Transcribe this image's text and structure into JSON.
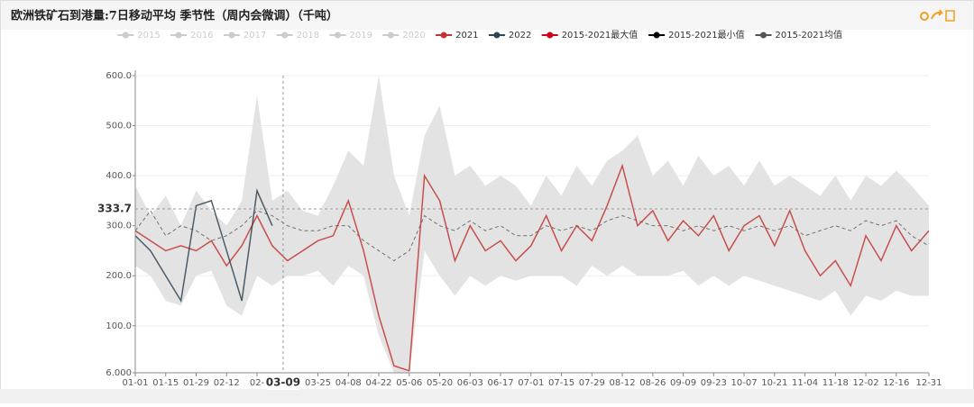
{
  "chart_data": {
    "type": "line",
    "title": "欧洲铁矿石到港量:7日移动平均 季节性（周内会微调）（千吨）",
    "categories": [
      "01-01",
      null,
      "01-15",
      null,
      "01-29",
      null,
      "02-12",
      null,
      "02-",
      null,
      null,
      null,
      "03-25",
      null,
      "04-08",
      null,
      "04-22",
      null,
      "05-06",
      null,
      "05-20",
      null,
      "06-03",
      null,
      "06-17",
      null,
      "07-01",
      null,
      "07-15",
      null,
      "07-29",
      null,
      "08-12",
      null,
      "08-26",
      null,
      "09-09",
      null,
      "09-23",
      null,
      "10-07",
      null,
      "10-21",
      null,
      "11-04",
      null,
      "11-18",
      null,
      "12-02",
      null,
      "12-16",
      null,
      "12-31"
    ],
    "ylim": [
      6,
      600
    ],
    "yticks": [
      {
        "value": 6,
        "label": "6.000"
      },
      {
        "value": 100,
        "label": "100.0"
      },
      {
        "value": 200,
        "label": "200.0"
      },
      {
        "value": 300,
        "label": "300.0"
      },
      {
        "value": 400,
        "label": "400.0"
      },
      {
        "value": 500,
        "label": "500.0"
      },
      {
        "value": 600,
        "label": "600.0"
      }
    ],
    "grid": true,
    "pointer": {
      "x": "03-09",
      "y": 333.7
    },
    "series": [
      {
        "name": "2015",
        "color": "#cccccc",
        "hidden": true
      },
      {
        "name": "2016",
        "color": "#cccccc",
        "hidden": true
      },
      {
        "name": "2017",
        "color": "#cccccc",
        "hidden": true
      },
      {
        "name": "2018",
        "color": "#cccccc",
        "hidden": true
      },
      {
        "name": "2019",
        "color": "#cccccc",
        "hidden": true
      },
      {
        "name": "2020",
        "color": "#cccccc",
        "hidden": true
      },
      {
        "name": "2021",
        "color": "#c23531",
        "role": "line",
        "values": [
          290,
          270,
          250,
          260,
          250,
          270,
          220,
          260,
          320,
          260,
          230,
          250,
          270,
          280,
          350,
          250,
          120,
          20,
          10,
          400,
          350,
          230,
          300,
          250,
          270,
          230,
          260,
          320,
          250,
          300,
          270,
          340,
          420,
          300,
          330,
          270,
          310,
          280,
          320,
          250,
          300,
          320,
          260,
          330,
          250,
          200,
          230,
          180,
          280,
          230,
          300,
          250,
          290
        ]
      },
      {
        "name": "2022",
        "color": "#2f4554",
        "role": "line",
        "values": [
          280,
          250,
          200,
          150,
          340,
          350,
          250,
          150,
          370,
          300,
          null,
          null,
          null,
          null,
          null,
          null,
          null,
          null,
          null,
          null,
          null,
          null,
          null,
          null,
          null,
          null,
          null,
          null,
          null,
          null,
          null,
          null,
          null,
          null,
          null,
          null,
          null,
          null,
          null,
          null,
          null,
          null,
          null,
          null,
          null,
          null,
          null,
          null,
          null,
          null,
          null,
          null,
          null
        ]
      },
      {
        "name": "2015-2021最大值",
        "color": "#d0021b",
        "role": "band-top",
        "values": [
          380,
          320,
          360,
          300,
          370,
          330,
          300,
          350,
          560,
          350,
          370,
          330,
          320,
          380,
          450,
          420,
          600,
          400,
          320,
          480,
          540,
          400,
          420,
          380,
          400,
          380,
          340,
          400,
          360,
          420,
          380,
          430,
          450,
          480,
          400,
          430,
          380,
          440,
          400,
          420,
          380,
          430,
          380,
          400,
          380,
          360,
          400,
          350,
          400,
          380,
          410,
          380,
          340
        ]
      },
      {
        "name": "2015-2021最小值",
        "color": "#000000",
        "role": "band-bottom",
        "values": [
          220,
          200,
          150,
          140,
          200,
          210,
          140,
          120,
          200,
          180,
          200,
          200,
          210,
          180,
          220,
          200,
          80,
          6,
          6,
          250,
          200,
          160,
          200,
          180,
          200,
          190,
          200,
          200,
          200,
          180,
          220,
          200,
          220,
          200,
          200,
          200,
          210,
          180,
          200,
          180,
          200,
          190,
          180,
          170,
          160,
          150,
          170,
          120,
          160,
          150,
          170,
          160,
          160
        ]
      },
      {
        "name": "2015-2021均值",
        "color": "#555555",
        "role": "dashed",
        "values": [
          290,
          330,
          280,
          300,
          290,
          270,
          280,
          300,
          330,
          320,
          300,
          290,
          290,
          300,
          300,
          270,
          250,
          230,
          250,
          320,
          300,
          290,
          310,
          290,
          300,
          280,
          280,
          300,
          290,
          300,
          290,
          310,
          320,
          310,
          300,
          300,
          290,
          300,
          290,
          300,
          290,
          300,
          290,
          300,
          280,
          290,
          300,
          290,
          310,
          300,
          310,
          280,
          260
        ]
      }
    ]
  }
}
